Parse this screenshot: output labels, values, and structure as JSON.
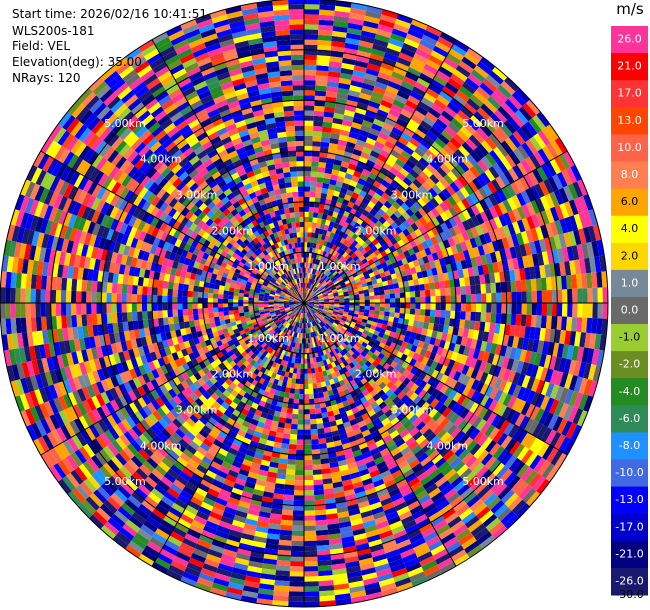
{
  "header": {
    "start_time": "Start time: 2026/02/16 10:41:51",
    "site": "WLS200s-181",
    "field": "Field: VEL",
    "elevation": "Elevation(deg): 35.00",
    "nrays": "NRays: 120"
  },
  "colorbar": {
    "unit": "m/s",
    "levels": [
      {
        "label": "26.0",
        "color": "#ff3399"
      },
      {
        "label": "21.0",
        "color": "#ff0000"
      },
      {
        "label": "17.0",
        "color": "#ff3333"
      },
      {
        "label": "13.0",
        "color": "#ff4500"
      },
      {
        "label": "10.0",
        "color": "#ff6347"
      },
      {
        "label": "8.0",
        "color": "#ff7f50"
      },
      {
        "label": "6.0",
        "color": "#ffa500"
      },
      {
        "label": "4.0",
        "color": "#ffff00"
      },
      {
        "label": "2.0",
        "color": "#ffd700"
      },
      {
        "label": "1.0",
        "color": "#778899"
      },
      {
        "label": "0.0",
        "color": "#696969"
      },
      {
        "label": "-1.0",
        "color": "#9acd32"
      },
      {
        "label": "-2.0",
        "color": "#6b8e23"
      },
      {
        "label": "-4.0",
        "color": "#228b22"
      },
      {
        "label": "-6.0",
        "color": "#2e8b57"
      },
      {
        "label": "-8.0",
        "color": "#1e90ff"
      },
      {
        "label": "-10.0",
        "color": "#4169e1"
      },
      {
        "label": "-13.0",
        "color": "#0000ff"
      },
      {
        "label": "-17.0",
        "color": "#0000cd"
      },
      {
        "label": "-21.0",
        "color": "#000080"
      },
      {
        "label": "-26.0",
        "color": "#191970"
      },
      {
        "label": "-30.0",
        "color": ""
      }
    ]
  },
  "chart_data": {
    "type": "heatmap",
    "projection": "polar-ppi",
    "field": "VEL",
    "unit": "m/s",
    "elevation_deg": 35.0,
    "nrays": 120,
    "range_rings_km": [
      1,
      2,
      3,
      4,
      5
    ],
    "range_labels": [
      "1.00km",
      "2.00km",
      "3.00km",
      "4.00km",
      "5.00km"
    ],
    "max_range_km": 6.0,
    "grid": true,
    "note_values": "per-gate velocities vary widely across the full colormap"
  }
}
